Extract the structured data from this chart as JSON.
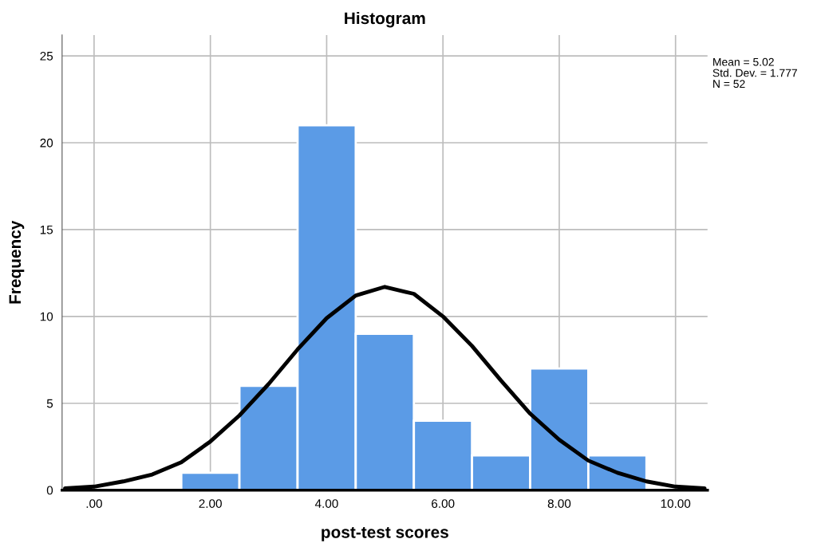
{
  "chart_data": {
    "type": "histogram",
    "title": "Histogram",
    "xlabel": "post-test scores",
    "ylabel": "Frequency",
    "bins": [
      1.5,
      2.5,
      3.5,
      4.5,
      5.5,
      6.5,
      7.5,
      8.5,
      9.5
    ],
    "values": [
      1,
      6,
      21,
      9,
      4,
      2,
      7,
      2
    ],
    "color": "#5b9be6",
    "series": [
      {
        "type": "line",
        "color": "#000000",
        "x": [
          -0.5,
          0,
          0.5,
          1,
          1.5,
          2,
          2.5,
          3,
          3.5,
          4,
          4.5,
          5,
          5.5,
          6,
          6.5,
          7,
          7.5,
          8,
          8.5,
          9,
          9.5,
          10,
          10.5
        ],
        "values": [
          0.1,
          0.2,
          0.5,
          0.9,
          1.6,
          2.8,
          4.3,
          6.1,
          8.1,
          9.9,
          11.2,
          11.7,
          11.3,
          10.0,
          8.3,
          6.3,
          4.4,
          2.9,
          1.7,
          1.0,
          0.5,
          0.2,
          0.1
        ]
      }
    ],
    "xlim": [
      -0.55,
      10.55
    ],
    "xticks": [
      {
        "value": 0,
        "label": ".00"
      },
      {
        "value": 2,
        "label": "2.00"
      },
      {
        "value": 4,
        "label": "4.00"
      },
      {
        "value": 6,
        "label": "6.00"
      },
      {
        "value": 8,
        "label": "8.00"
      },
      {
        "value": 10,
        "label": "10.00"
      }
    ],
    "ylim": [
      0,
      26.2
    ],
    "yticks": [
      0,
      5,
      10,
      15,
      20,
      25
    ],
    "grid": true,
    "annotations": [
      "Mean = 5.02",
      "Std. Dev. = 1.777",
      "N = 52"
    ]
  }
}
